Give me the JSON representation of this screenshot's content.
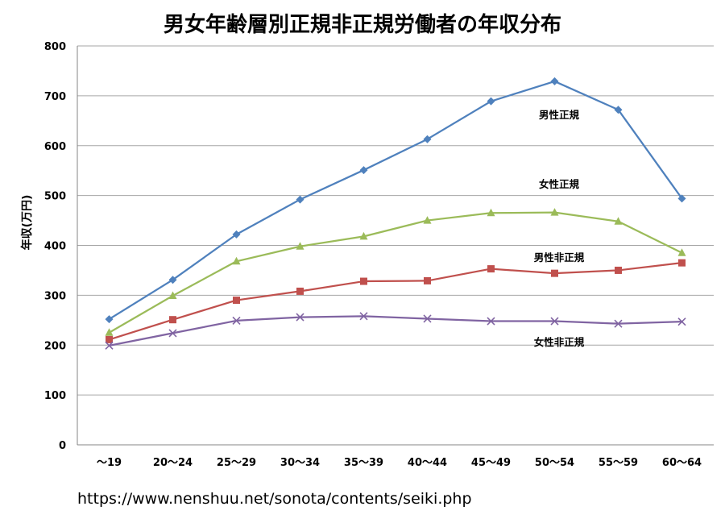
{
  "chart_data": {
    "type": "line",
    "title": "男女年齢層別正規非正規労働者の年収分布",
    "ylabel": "年収(万円)",
    "xlabel": "",
    "ylim": [
      0,
      800
    ],
    "yticks": [
      0,
      100,
      200,
      300,
      400,
      500,
      600,
      700,
      800
    ],
    "grid": true,
    "categories": [
      "～19",
      "20～24",
      "25～29",
      "30～34",
      "35～39",
      "40～44",
      "45～49",
      "50～54",
      "55～59",
      "60～64"
    ],
    "series": [
      {
        "name": "男性正規",
        "color": "#4F81BD",
        "marker": "diamond",
        "values": [
          252,
          331,
          422,
          492,
          551,
          613,
          689,
          729,
          672,
          494
        ]
      },
      {
        "name": "女性正規",
        "color": "#9BBB59",
        "marker": "triangle",
        "values": [
          225,
          299,
          368,
          398,
          418,
          450,
          465,
          466,
          448,
          385
        ]
      },
      {
        "name": "男性非正規",
        "color": "#C0504D",
        "marker": "square",
        "values": [
          211,
          251,
          290,
          308,
          328,
          329,
          353,
          344,
          350,
          365
        ]
      },
      {
        "name": "女性非正規",
        "color": "#8064A2",
        "marker": "x",
        "values": [
          199,
          224,
          249,
          256,
          258,
          253,
          248,
          248,
          243,
          247
        ]
      }
    ],
    "annotations": [
      {
        "text": "男性正規",
        "series": 0
      },
      {
        "text": "女性正規",
        "series": 1
      },
      {
        "text": "男性非正規",
        "series": 2
      },
      {
        "text": "女性非正規",
        "series": 3
      }
    ]
  },
  "source": "https://www.nenshuu.net/sonota/contents/seiki.php"
}
